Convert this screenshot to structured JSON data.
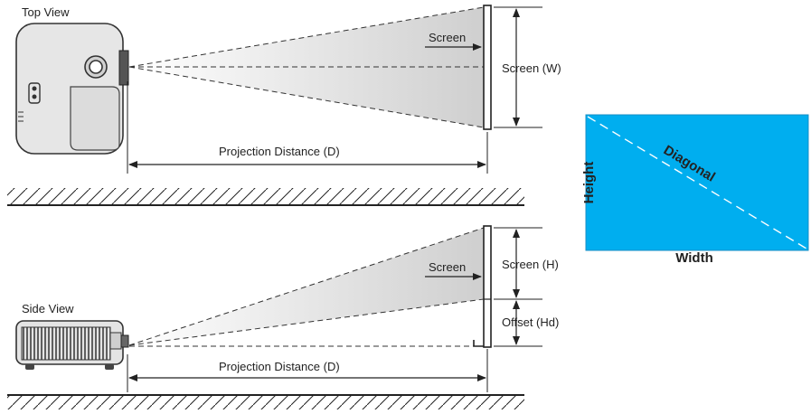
{
  "top_view": {
    "view_label": "Top View",
    "screen_label": "Screen",
    "screen_width_label": "Screen (W)",
    "distance_label": "Projection Distance (D)"
  },
  "side_view": {
    "view_label": "Side View",
    "screen_label": "Screen",
    "screen_height_label": "Screen (H)",
    "offset_label": "Offset (Hd)",
    "distance_label": "Projection Distance (D)"
  },
  "screen_diagram": {
    "height_label": "Height",
    "width_label": "Width",
    "diagonal_label": "Diagonal",
    "fill_color": "#00aeef"
  },
  "colors": {
    "line": "#222222",
    "beam": "#d4d4d4",
    "projector_body": "#e4e4e4"
  }
}
